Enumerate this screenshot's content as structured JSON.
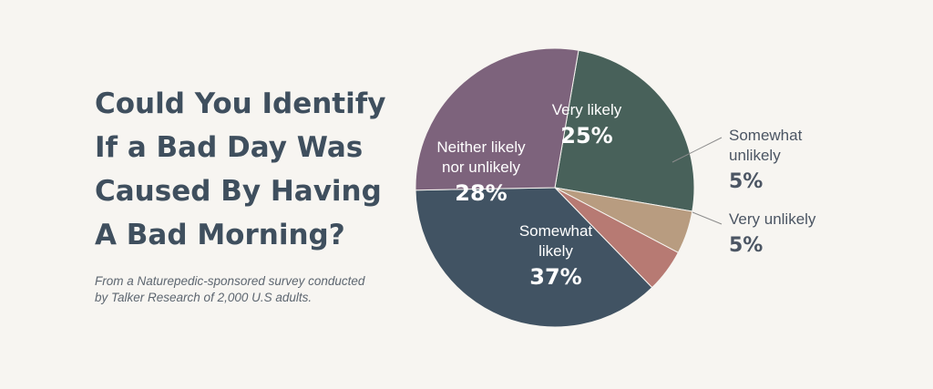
{
  "title_lines": [
    "Could You Identify",
    "If a Bad Day Was",
    "Caused By Having",
    "A Bad Morning?"
  ],
  "note_lines": [
    "From a Naturepedic-sponsored survey conducted",
    "by Talker Research of 2,000 U.S adults."
  ],
  "chart_data": {
    "type": "pie",
    "title": "Could You Identify If a Bad Day Was Caused By Having A Bad Morning?",
    "slices": [
      {
        "label": "Very likely",
        "value": 25,
        "color": "#48615a"
      },
      {
        "label": "Somewhat unlikely",
        "value": 5,
        "color": "#b89c80"
      },
      {
        "label": "Very unlikely",
        "value": 5,
        "color": "#b77a73"
      },
      {
        "label": "Somewhat likely",
        "value": 37,
        "color": "#415363"
      },
      {
        "label": "Neither likely nor unlikely",
        "value": 28,
        "color": "#7d637c"
      }
    ],
    "unit": "%"
  }
}
